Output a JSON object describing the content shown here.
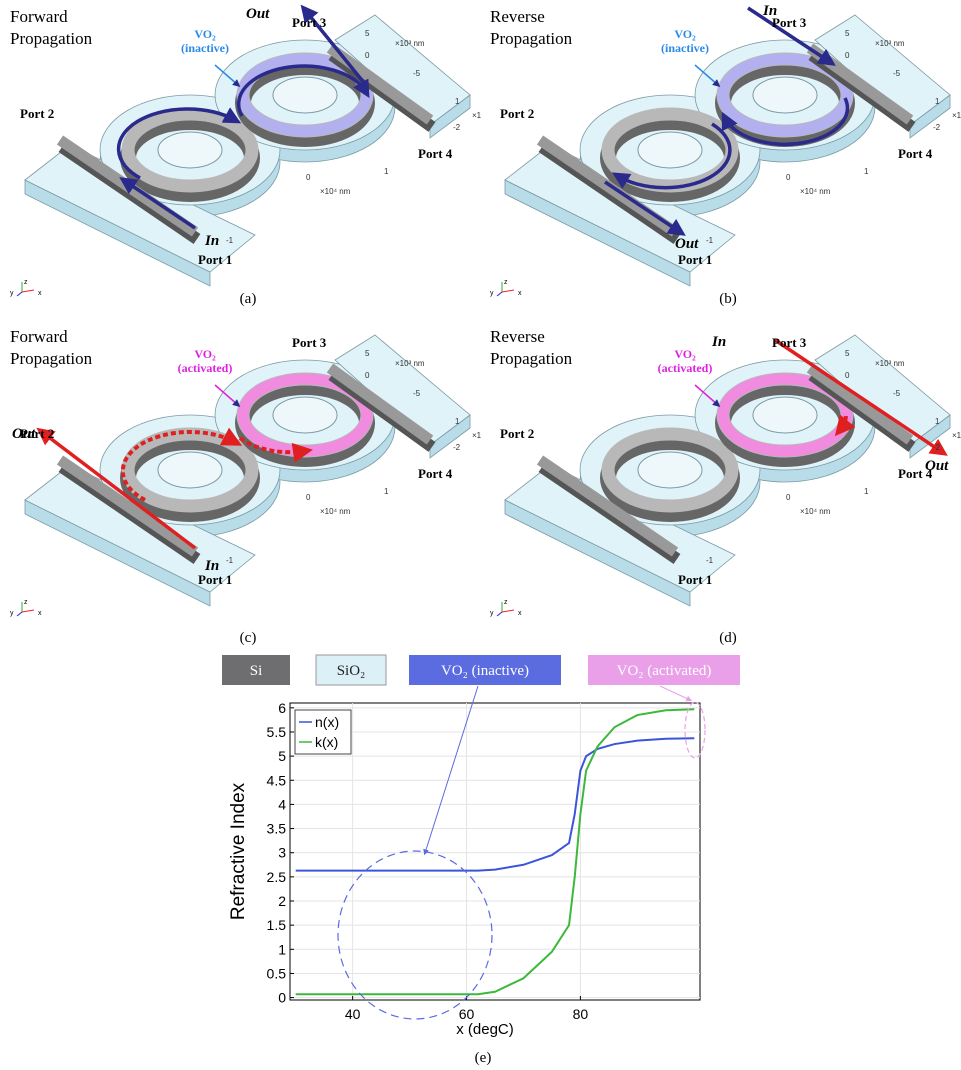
{
  "panels": [
    {
      "caption": "(a)",
      "title_lines": [
        "Forward",
        "Propagation"
      ],
      "vo2_lines": [
        "VO₂",
        "(inactive)"
      ],
      "ports": [
        "Port 1",
        "Port 2",
        "Port 3",
        "Port 4"
      ],
      "in_label": "In",
      "out_label": "Out",
      "axis_texts": [
        "5",
        "×10³ nm",
        "0",
        "-5",
        "1",
        "×1",
        "-2",
        "1",
        "0",
        "×10⁴ nm",
        "-1"
      ],
      "triad": [
        "z",
        "y",
        "x"
      ]
    },
    {
      "caption": "(b)",
      "title_lines": [
        "Reverse",
        "Propagation"
      ],
      "vo2_lines": [
        "VO₂",
        "(inactive)"
      ],
      "ports": [
        "Port 1",
        "Port 2",
        "Port 3",
        "Port 4"
      ],
      "in_label": "In",
      "out_label": "Out",
      "axis_texts": [
        "5",
        "×10³ nm",
        "0",
        "-5",
        "1",
        "×1",
        "-2",
        "1",
        "0",
        "×10⁴ nm",
        "-1"
      ],
      "triad": [
        "z",
        "y",
        "x"
      ]
    },
    {
      "caption": "(c)",
      "title_lines": [
        "Forward",
        "Propagation"
      ],
      "vo2_lines": [
        "VO₂",
        "(activated)"
      ],
      "ports": [
        "Port 1",
        "Port 2",
        "Port 3",
        "Port 4"
      ],
      "in_label": "In",
      "out_label": "Out",
      "axis_texts": [
        "5",
        "×10³ nm",
        "0",
        "-5",
        "1",
        "×1",
        "-2",
        "1",
        "0",
        "×10⁴ nm",
        "-1"
      ],
      "triad": [
        "z",
        "y",
        "x"
      ]
    },
    {
      "caption": "(d)",
      "title_lines": [
        "Reverse",
        "Propagation"
      ],
      "vo2_lines": [
        "VO₂",
        "(activated)"
      ],
      "ports": [
        "Port 1",
        "Port 2",
        "Port 3",
        "Port 4"
      ],
      "in_label": "In",
      "out_label": "Out",
      "axis_texts": [
        "5",
        "×10³ nm",
        "0",
        "-5",
        "1",
        "×1",
        "-2",
        "1",
        "0",
        "×10⁴ nm",
        "-1"
      ],
      "triad": [
        "z",
        "y",
        "x"
      ]
    }
  ],
  "materials": [
    "Si",
    "SiO₂",
    "VO₂ (inactive)",
    "VO₂ (activated)"
  ],
  "chart_data": {
    "type": "line",
    "caption": "(e)",
    "xlabel": "x (degC)",
    "ylabel": "Refractive Index",
    "x": [
      30,
      40,
      50,
      60,
      62,
      65,
      70,
      75,
      78,
      79,
      80,
      81,
      83,
      86,
      90,
      95,
      100
    ],
    "series": [
      {
        "name": "n(x)",
        "color": "#3b55d9",
        "values": [
          2.63,
          2.63,
          2.63,
          2.63,
          2.63,
          2.65,
          2.75,
          2.95,
          3.2,
          3.8,
          4.7,
          5.0,
          5.15,
          5.25,
          5.32,
          5.36,
          5.37
        ]
      },
      {
        "name": "k(x)",
        "color": "#3cb83c",
        "values": [
          0.07,
          0.07,
          0.07,
          0.07,
          0.07,
          0.12,
          0.4,
          0.95,
          1.5,
          2.5,
          3.8,
          4.7,
          5.2,
          5.6,
          5.85,
          5.95,
          5.97
        ]
      }
    ],
    "xlim": [
      29,
      101
    ],
    "xticks": [
      40,
      60,
      80
    ],
    "ylim": [
      -0.05,
      6.1
    ],
    "yticks": [
      0,
      0.5,
      1,
      1.5,
      2,
      2.5,
      3,
      3.5,
      4,
      4.5,
      5,
      5.5,
      6
    ],
    "grid": true,
    "legend": "upper left"
  }
}
